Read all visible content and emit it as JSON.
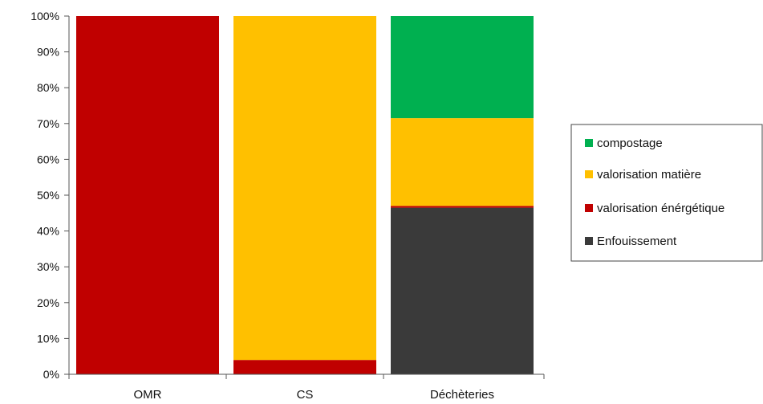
{
  "chart_data": {
    "type": "bar",
    "stacked": true,
    "categories": [
      "OMR",
      "CS",
      "Déchèteries"
    ],
    "y_ticks": [
      "0%",
      "10%",
      "20%",
      "30%",
      "40%",
      "50%",
      "60%",
      "70%",
      "80%",
      "90%",
      "100%"
    ],
    "ylim": [
      0,
      100
    ],
    "grid": false,
    "legend_position": "right",
    "series": [
      {
        "name": "Enfouissement",
        "color": "#3a3a3a",
        "values": [
          0,
          0,
          46.5
        ]
      },
      {
        "name": "valorisation énérgétique",
        "color": "#c00000",
        "values": [
          100,
          4,
          0.5
        ]
      },
      {
        "name": "valorisation matière",
        "color": "#ffc000",
        "values": [
          0,
          96,
          24.5
        ]
      },
      {
        "name": "compostage",
        "color": "#00b050",
        "values": [
          0,
          0,
          28.5
        ]
      }
    ],
    "legend_order": [
      "compostage",
      "valorisation matière",
      "valorisation énérgétique",
      "Enfouissement"
    ]
  }
}
